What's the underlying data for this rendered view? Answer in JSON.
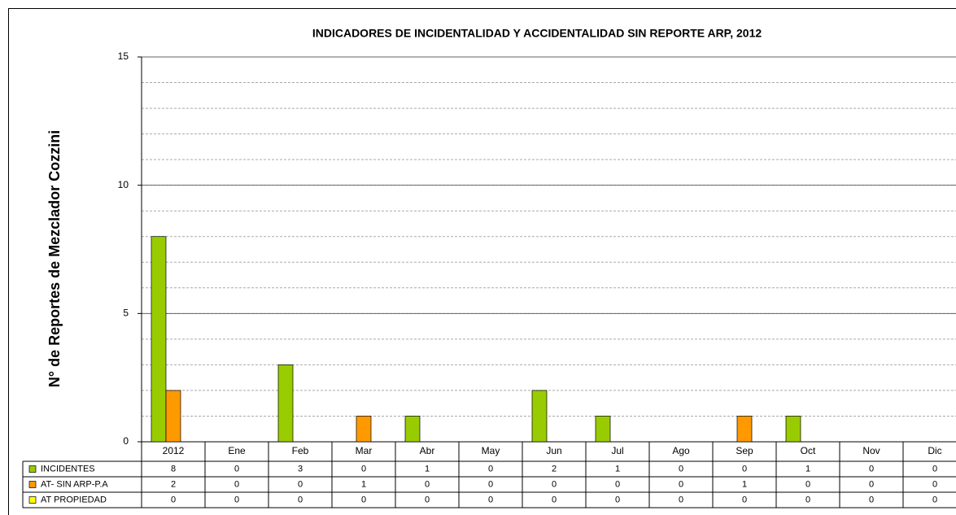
{
  "chart_data": {
    "type": "bar",
    "title": "INDICADORES DE INCIDENTALIDAD Y ACCIDENTALIDAD SIN REPORTE ARP, 2012",
    "ylabel": "N° de Reportes de Mezclador Cozzini",
    "categories": [
      "2012",
      "Ene",
      "Feb",
      "Mar",
      "Abr",
      "May",
      "Jun",
      "Jul",
      "Ago",
      "Sep",
      "Oct",
      "Nov",
      "Dic"
    ],
    "series": [
      {
        "name": "INCIDENTES",
        "color": "#99cc00",
        "values": [
          8,
          0,
          3,
          0,
          1,
          0,
          2,
          1,
          0,
          0,
          1,
          0,
          0
        ]
      },
      {
        "name": "AT- SIN ARP-P.A",
        "color": "#ff9900",
        "values": [
          2,
          0,
          0,
          1,
          0,
          0,
          0,
          0,
          0,
          1,
          0,
          0,
          0
        ]
      },
      {
        "name": "AT PROPIEDAD",
        "color": "#ffff00",
        "values": [
          0,
          0,
          0,
          0,
          0,
          0,
          0,
          0,
          0,
          0,
          0,
          0,
          0
        ]
      }
    ],
    "ylim": [
      0,
      15
    ],
    "yticks": [
      0,
      5,
      10,
      15
    ],
    "grid": true
  }
}
